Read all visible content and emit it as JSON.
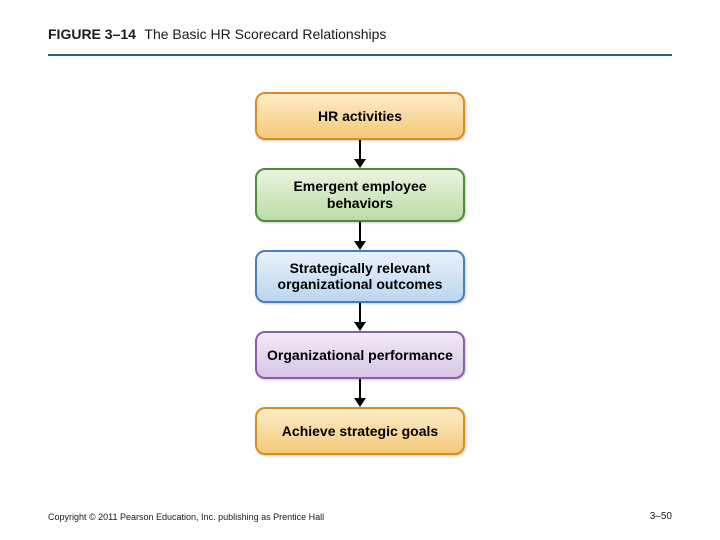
{
  "header": {
    "figure_label": "FIGURE 3–14",
    "title": "The Basic HR Scorecard Relationships",
    "rule_color": "#2e5f8a"
  },
  "flow": {
    "nodes": [
      {
        "label": "HR activities",
        "border_color": "#d98c1f",
        "fill_top": "#fdecc8",
        "fill_bottom": "#f4c97a"
      },
      {
        "label": "Emergent employee behaviors",
        "border_color": "#4f8a3d",
        "fill_top": "#e9f4df",
        "fill_bottom": "#bcdca5"
      },
      {
        "label": "Strategically relevant organizational outcomes",
        "border_color": "#4a7fbf",
        "fill_top": "#e8f1fa",
        "fill_bottom": "#bcd6ef"
      },
      {
        "label": "Organizational performance",
        "border_color": "#8a5fa8",
        "fill_top": "#f1eaf6",
        "fill_bottom": "#d7c6e6"
      },
      {
        "label": "Achieve strategic goals",
        "border_color": "#d98c1f",
        "fill_top": "#fdecc8",
        "fill_bottom": "#f4c97a"
      }
    ],
    "arrow_color": "#000000"
  },
  "footer": {
    "copyright": "Copyright © 2011 Pearson Education, Inc. publishing as Prentice Hall",
    "page": "3–50"
  }
}
